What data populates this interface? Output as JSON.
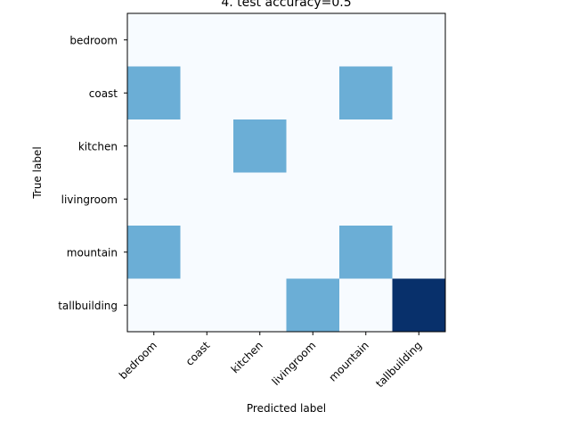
{
  "chart_data": {
    "type": "heatmap",
    "title": "4. test accuracy=0.5",
    "xlabel": "Predicted label",
    "ylabel": "True label",
    "x_categories": [
      "bedroom",
      "coast",
      "kitchen",
      "livingroom",
      "mountain",
      "tallbuilding"
    ],
    "y_categories": [
      "bedroom",
      "coast",
      "kitchen",
      "livingroom",
      "mountain",
      "tallbuilding"
    ],
    "values": [
      [
        0,
        0,
        0,
        0,
        0,
        0
      ],
      [
        1,
        0,
        0,
        0,
        1,
        0
      ],
      [
        0,
        0,
        1,
        0,
        0,
        0
      ],
      [
        0,
        0,
        0,
        0,
        0,
        0
      ],
      [
        1,
        0,
        0,
        0,
        1,
        0
      ],
      [
        0,
        0,
        0,
        1,
        0,
        2
      ]
    ],
    "colormap": "Blues",
    "color_range": [
      0,
      2
    ],
    "colors": {
      "low": "#f7fbff",
      "mid": "#6baed6",
      "high": "#08306b"
    },
    "x_tick_rotation": 45
  }
}
